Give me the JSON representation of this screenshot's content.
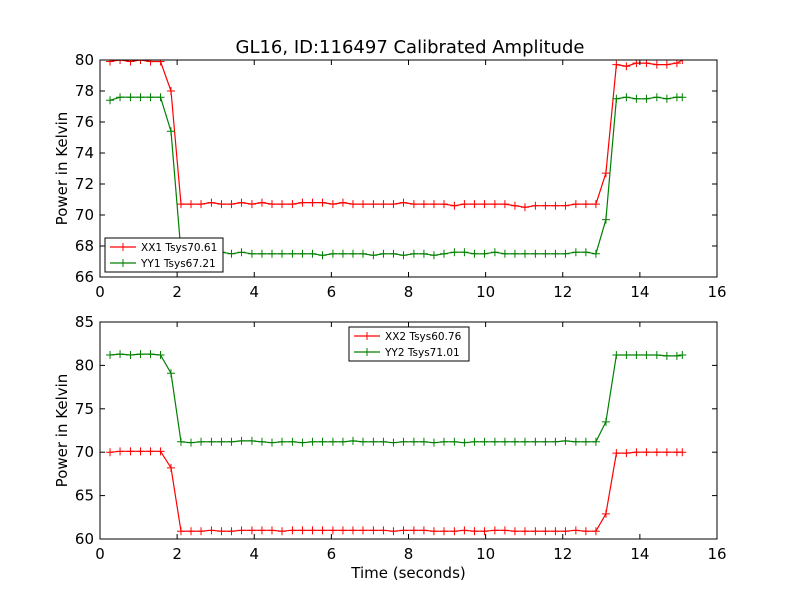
{
  "figure": {
    "title": "GL16, ID:116497 Calibrated Amplitude"
  },
  "colors": {
    "xx": "#ff0000",
    "yy": "#008000",
    "axis": "#000000"
  },
  "chart_data": [
    {
      "type": "line",
      "title": "GL16, ID:116497 Calibrated Amplitude",
      "xlabel": "",
      "ylabel": "Power in Kelvin",
      "xlim": [
        0,
        16
      ],
      "ylim": [
        66,
        80
      ],
      "xticks": [
        0,
        2,
        4,
        6,
        8,
        10,
        12,
        14,
        16
      ],
      "yticks": [
        66,
        68,
        70,
        72,
        74,
        76,
        78,
        80
      ],
      "grid": false,
      "legend_position": "lower-left",
      "marker": "plus",
      "x": [
        0.26,
        0.52,
        0.79,
        1.05,
        1.31,
        1.57,
        1.84,
        2.1,
        2.36,
        2.62,
        2.89,
        3.15,
        3.41,
        3.67,
        3.94,
        4.2,
        4.46,
        4.72,
        4.99,
        5.25,
        5.51,
        5.77,
        6.04,
        6.3,
        6.56,
        6.82,
        7.09,
        7.35,
        7.61,
        7.87,
        8.14,
        8.4,
        8.66,
        8.92,
        9.19,
        9.45,
        9.71,
        9.97,
        10.24,
        10.5,
        10.76,
        11.02,
        11.29,
        11.55,
        11.81,
        12.07,
        12.34,
        12.6,
        12.86,
        13.12,
        13.39,
        13.65,
        13.91,
        14.17,
        14.44,
        14.7,
        14.96,
        15.1
      ],
      "series": [
        {
          "name": "XX1 Tsys70.61",
          "color": "#ff0000",
          "values": [
            79.9,
            80.0,
            79.9,
            80.0,
            79.9,
            79.9,
            78.0,
            70.7,
            70.7,
            70.7,
            70.8,
            70.7,
            70.7,
            70.8,
            70.7,
            70.8,
            70.7,
            70.7,
            70.7,
            70.8,
            70.8,
            70.8,
            70.7,
            70.8,
            70.7,
            70.7,
            70.7,
            70.7,
            70.7,
            70.8,
            70.7,
            70.7,
            70.7,
            70.7,
            70.6,
            70.7,
            70.7,
            70.7,
            70.7,
            70.7,
            70.6,
            70.5,
            70.6,
            70.6,
            70.6,
            70.6,
            70.7,
            70.7,
            70.7,
            72.7,
            79.7,
            79.6,
            79.8,
            79.8,
            79.7,
            79.7,
            79.8,
            80.0
          ]
        },
        {
          "name": "YY1 Tsys67.21",
          "color": "#008000",
          "values": [
            77.4,
            77.6,
            77.6,
            77.6,
            77.6,
            77.6,
            75.4,
            67.6,
            67.5,
            67.5,
            67.4,
            67.6,
            67.5,
            67.6,
            67.5,
            67.5,
            67.5,
            67.5,
            67.5,
            67.5,
            67.5,
            67.4,
            67.5,
            67.5,
            67.5,
            67.5,
            67.4,
            67.5,
            67.5,
            67.4,
            67.5,
            67.5,
            67.4,
            67.5,
            67.6,
            67.6,
            67.5,
            67.5,
            67.6,
            67.5,
            67.5,
            67.5,
            67.5,
            67.5,
            67.5,
            67.5,
            67.6,
            67.6,
            67.5,
            69.7,
            77.5,
            77.6,
            77.5,
            77.5,
            77.6,
            77.5,
            77.6,
            77.6
          ]
        }
      ]
    },
    {
      "type": "line",
      "title": "",
      "xlabel": "Time (seconds)",
      "ylabel": "Power in Kelvin",
      "xlim": [
        0,
        16
      ],
      "ylim": [
        60,
        85
      ],
      "xticks": [
        0,
        2,
        4,
        6,
        8,
        10,
        12,
        14,
        16
      ],
      "yticks": [
        60,
        65,
        70,
        75,
        80,
        85
      ],
      "grid": false,
      "legend_position": "upper-center",
      "marker": "plus",
      "x": [
        0.26,
        0.52,
        0.79,
        1.05,
        1.31,
        1.57,
        1.84,
        2.1,
        2.36,
        2.62,
        2.89,
        3.15,
        3.41,
        3.67,
        3.94,
        4.2,
        4.46,
        4.72,
        4.99,
        5.25,
        5.51,
        5.77,
        6.04,
        6.3,
        6.56,
        6.82,
        7.09,
        7.35,
        7.61,
        7.87,
        8.14,
        8.4,
        8.66,
        8.92,
        9.19,
        9.45,
        9.71,
        9.97,
        10.24,
        10.5,
        10.76,
        11.02,
        11.29,
        11.55,
        11.81,
        12.07,
        12.34,
        12.6,
        12.86,
        13.12,
        13.39,
        13.65,
        13.91,
        14.17,
        14.44,
        14.7,
        14.96,
        15.1
      ],
      "series": [
        {
          "name": "XX2 Tsys60.76",
          "color": "#ff0000",
          "values": [
            70.0,
            70.1,
            70.1,
            70.1,
            70.1,
            70.1,
            68.2,
            60.9,
            60.9,
            60.9,
            61.0,
            60.9,
            60.9,
            61.0,
            61.0,
            61.0,
            61.0,
            60.9,
            61.0,
            61.0,
            61.0,
            61.0,
            61.0,
            61.0,
            61.0,
            61.0,
            61.0,
            61.0,
            60.9,
            61.0,
            61.0,
            61.0,
            60.9,
            60.9,
            60.9,
            61.0,
            60.9,
            60.9,
            61.0,
            61.0,
            60.9,
            60.9,
            60.9,
            60.9,
            60.9,
            60.9,
            61.0,
            60.9,
            60.9,
            62.9,
            69.9,
            69.9,
            70.0,
            70.0,
            70.0,
            70.0,
            70.0,
            70.0
          ]
        },
        {
          "name": "YY2 Tsys71.01",
          "color": "#008000",
          "values": [
            81.2,
            81.3,
            81.2,
            81.3,
            81.3,
            81.2,
            79.1,
            71.2,
            71.1,
            71.2,
            71.2,
            71.2,
            71.2,
            71.3,
            71.3,
            71.2,
            71.1,
            71.2,
            71.2,
            71.1,
            71.2,
            71.2,
            71.2,
            71.2,
            71.3,
            71.2,
            71.2,
            71.2,
            71.1,
            71.2,
            71.2,
            71.2,
            71.1,
            71.2,
            71.2,
            71.1,
            71.2,
            71.2,
            71.2,
            71.2,
            71.2,
            71.2,
            71.2,
            71.2,
            71.2,
            71.3,
            71.2,
            71.2,
            71.2,
            73.5,
            81.2,
            81.2,
            81.2,
            81.2,
            81.2,
            81.1,
            81.1,
            81.2
          ]
        }
      ]
    }
  ]
}
